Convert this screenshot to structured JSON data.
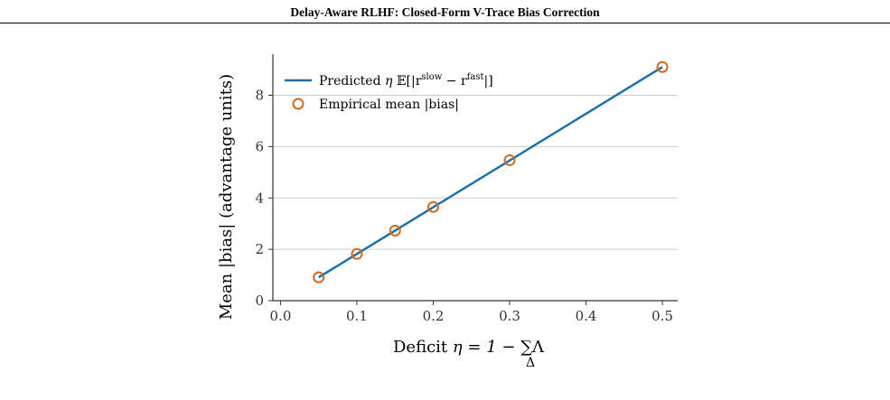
{
  "page_title": "Delay-Aware RLHF: Closed-Form V-Trace Bias Correction",
  "caption": "",
  "chart_data": {
    "type": "line",
    "xlabel": "Deficit η = 1 − ∑ Λ",
    "xlabel_parts": {
      "main": "Deficit ",
      "eq": "η = 1 − ",
      "sum": "∑",
      "sub": "Δ",
      "tail": "Λ"
    },
    "ylabel": "Mean |bias| (advantage units)",
    "xlim": [
      -0.01,
      0.52
    ],
    "ylim": [
      0,
      9.6
    ],
    "xticks": [
      0.0,
      0.1,
      0.2,
      0.3,
      0.4,
      0.5
    ],
    "xtick_labels": [
      "0.0",
      "0.1",
      "0.2",
      "0.3",
      "0.4",
      "0.5"
    ],
    "yticks": [
      0,
      2,
      4,
      6,
      8
    ],
    "ytick_labels": [
      "0",
      "2",
      "4",
      "6",
      "8"
    ],
    "grid": "horizontal",
    "legend_position": "top-left",
    "series": [
      {
        "name": "Predicted η 𝔼[|r^slow − r^fast|]",
        "legend_parts": {
          "pre": "Predicted ",
          "eta": "η ",
          "E": "𝔼[|r",
          "sup1": "slow",
          "mid": " − r",
          "sup2": "fast",
          "post": "|]"
        },
        "kind": "line",
        "color": "#1f6fa8",
        "x": [
          0.05,
          0.5
        ],
        "y": [
          0.91,
          9.1
        ]
      },
      {
        "name": "Empirical mean |bias|",
        "kind": "scatter",
        "color": "#d2691e",
        "x": [
          0.05,
          0.1,
          0.15,
          0.2,
          0.3,
          0.5
        ],
        "y": [
          0.91,
          1.82,
          2.73,
          3.65,
          5.47,
          9.1
        ]
      }
    ]
  }
}
